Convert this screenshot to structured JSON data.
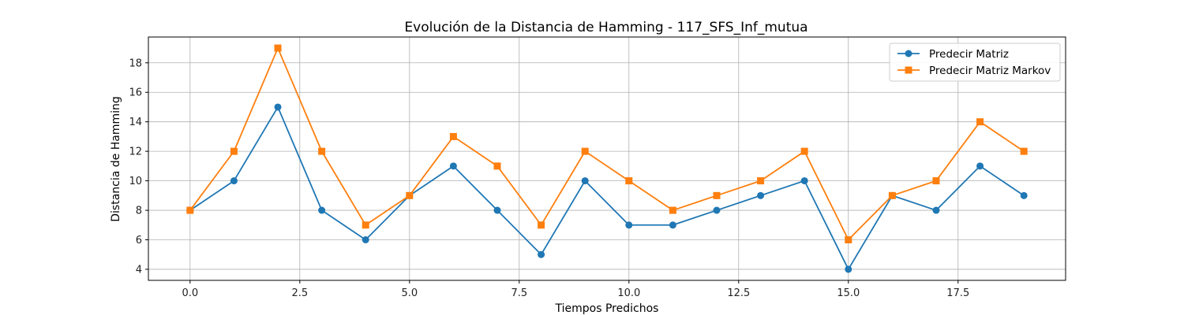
{
  "chart_data": {
    "type": "line",
    "title": "Evolución de la Distancia de Hamming - 117_SFS_Inf_mutua",
    "xlabel": "Tiempos Predichos",
    "ylabel": "Distancia de Hamming",
    "x": [
      0,
      1,
      2,
      3,
      4,
      5,
      6,
      7,
      8,
      9,
      10,
      11,
      12,
      13,
      14,
      15,
      16,
      17,
      18,
      19
    ],
    "xlim": [
      -0.95,
      19.95
    ],
    "ylim": [
      3.25,
      19.75
    ],
    "xticks": [
      0.0,
      2.5,
      5.0,
      7.5,
      10.0,
      12.5,
      15.0,
      17.5
    ],
    "xtick_labels": [
      "0.0",
      "2.5",
      "5.0",
      "7.5",
      "10.0",
      "12.5",
      "15.0",
      "17.5"
    ],
    "yticks": [
      4,
      6,
      8,
      10,
      12,
      14,
      16,
      18
    ],
    "ytick_labels": [
      "4",
      "6",
      "8",
      "10",
      "12",
      "14",
      "16",
      "18"
    ],
    "grid": true,
    "legend_position": "top-right",
    "series": [
      {
        "name": "Predecir Matriz",
        "color": "#1f77b4",
        "marker": "circle",
        "values": [
          8,
          10,
          15,
          8,
          6,
          9,
          11,
          8,
          5,
          10,
          7,
          7,
          8,
          9,
          10,
          4,
          9,
          8,
          11,
          9
        ]
      },
      {
        "name": "Predecir Matriz Markov",
        "color": "#ff7f0e",
        "marker": "square",
        "values": [
          8,
          12,
          19,
          12,
          7,
          9,
          13,
          11,
          7,
          12,
          10,
          8,
          9,
          10,
          12,
          6,
          9,
          10,
          14,
          12
        ]
      }
    ]
  }
}
